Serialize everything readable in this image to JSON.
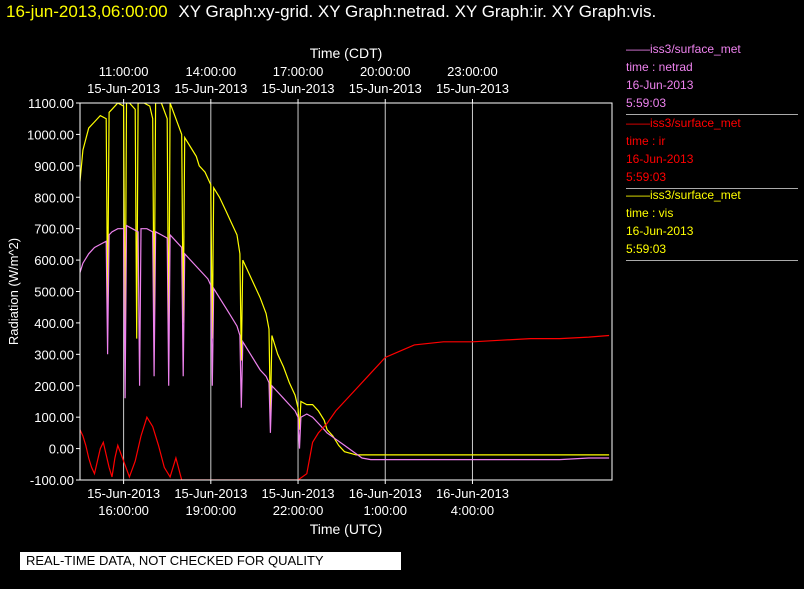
{
  "header": {
    "timestamp": "16-jun-2013,06:00:00",
    "titles": "XY Graph:xy-grid.  XY Graph:netrad.  XY Graph:ir.  XY Graph:vis."
  },
  "legend": [
    {
      "source": "iss3/surface_met",
      "vars": "time : netrad",
      "date": "16-Jun-2013",
      "time": "5:59:03",
      "color": "#ee82ee"
    },
    {
      "source": "iss3/surface_met",
      "vars": "time : ir",
      "date": "16-Jun-2013",
      "time": "5:59:03",
      "color": "#ff0000"
    },
    {
      "source": "iss3/surface_met",
      "vars": "time : vis",
      "date": "16-Jun-2013",
      "time": "5:59:03",
      "color": "#ffff00"
    }
  ],
  "disclaimer": "REAL-TIME DATA, NOT CHECKED FOR QUALITY",
  "chart_data": {
    "type": "line",
    "xlabel_top": "Time (CDT)",
    "xlabel_bottom": "Time (UTC)",
    "ylabel": "Radiation (W/m^2)",
    "ylim": [
      -100,
      1100
    ],
    "xlim_utc_hours": [
      14.5,
      32.8
    ],
    "grid": true,
    "y_ticks": [
      "1100.00",
      "1000.00",
      "900.00",
      "800.00",
      "700.00",
      "600.00",
      "500.00",
      "400.00",
      "300.00",
      "200.00",
      "100.00",
      "0.00",
      "-100.00"
    ],
    "top_ticks": [
      {
        "hour": 16,
        "time": "11:00:00",
        "date": "15-Jun-2013"
      },
      {
        "hour": 19,
        "time": "14:00:00",
        "date": "15-Jun-2013"
      },
      {
        "hour": 22,
        "time": "17:00:00",
        "date": "15-Jun-2013"
      },
      {
        "hour": 25,
        "time": "20:00:00",
        "date": "15-Jun-2013"
      },
      {
        "hour": 28,
        "time": "23:00:00",
        "date": "15-Jun-2013"
      }
    ],
    "bottom_ticks": [
      {
        "hour": 16,
        "date": "15-Jun-2013",
        "time": "16:00:00"
      },
      {
        "hour": 19,
        "date": "15-Jun-2013",
        "time": "19:00:00"
      },
      {
        "hour": 22,
        "date": "15-Jun-2013",
        "time": "22:00:00"
      },
      {
        "hour": 25,
        "date": "16-Jun-2013",
        "time": "1:00:00"
      },
      {
        "hour": 28,
        "date": "16-Jun-2013",
        "time": "4:00:00"
      }
    ],
    "series": [
      {
        "name": "time : vis",
        "color": "#ffff00",
        "x": [
          14.5,
          14.6,
          14.8,
          15.0,
          15.2,
          15.4,
          15.45,
          15.5,
          15.6,
          15.8,
          16.0,
          16.05,
          16.1,
          16.2,
          16.4,
          16.45,
          16.5,
          16.7,
          16.9,
          17.0,
          17.05,
          17.1,
          17.3,
          17.5,
          17.55,
          17.6,
          17.8,
          18.0,
          18.05,
          18.1,
          18.3,
          18.5,
          18.6,
          18.8,
          19.0,
          19.05,
          19.1,
          19.3,
          19.5,
          19.7,
          19.9,
          20.0,
          20.05,
          20.1,
          20.3,
          20.5,
          20.7,
          20.9,
          21.0,
          21.05,
          21.1,
          21.3,
          21.5,
          21.7,
          21.9,
          22.0,
          22.05,
          22.1,
          22.3,
          22.5,
          22.7,
          22.9,
          23.0,
          23.2,
          23.4,
          23.6,
          23.8,
          24.0,
          24.2,
          24.4,
          24.6,
          24.8,
          25.0,
          25.5,
          26.0,
          27.0,
          28.0,
          29.0,
          30.0,
          31.0,
          32.0,
          32.7
        ],
        "y": [
          850,
          950,
          1020,
          1040,
          1060,
          1050,
          450,
          1070,
          1080,
          1100,
          1090,
          300,
          1100,
          1100,
          1080,
          350,
          1100,
          1100,
          1090,
          1050,
          380,
          1100,
          1100,
          1050,
          300,
          1100,
          1050,
          1000,
          400,
          990,
          960,
          930,
          900,
          880,
          840,
          350,
          830,
          800,
          760,
          720,
          680,
          620,
          280,
          600,
          560,
          520,
          480,
          430,
          380,
          100,
          360,
          300,
          260,
          210,
          170,
          130,
          60,
          150,
          140,
          140,
          120,
          90,
          60,
          40,
          10,
          -10,
          -15,
          -20,
          -20,
          -20,
          -20,
          -20,
          -20,
          -20,
          -20,
          -20,
          -20,
          -20,
          -20,
          -20,
          -20,
          -20
        ]
      },
      {
        "name": "time : netrad",
        "color": "#ee82ee",
        "x": [
          14.5,
          14.6,
          14.8,
          15.0,
          15.2,
          15.4,
          15.45,
          15.5,
          15.6,
          15.8,
          16.0,
          16.05,
          16.1,
          16.3,
          16.5,
          16.55,
          16.6,
          16.8,
          17.0,
          17.05,
          17.1,
          17.3,
          17.5,
          17.55,
          17.6,
          17.8,
          18.0,
          18.05,
          18.1,
          18.3,
          18.5,
          18.7,
          18.9,
          19.0,
          19.05,
          19.1,
          19.3,
          19.5,
          19.7,
          19.9,
          20.0,
          20.05,
          20.1,
          20.3,
          20.5,
          20.7,
          20.9,
          21.0,
          21.05,
          21.1,
          21.3,
          21.5,
          21.7,
          21.9,
          22.0,
          22.05,
          22.1,
          22.3,
          22.5,
          22.7,
          22.9,
          23.0,
          23.3,
          23.6,
          23.9,
          24.2,
          24.5,
          24.8,
          25.0,
          25.5,
          26.0,
          27.0,
          28.0,
          29.0,
          30.0,
          31.0,
          32.0,
          32.7
        ],
        "y": [
          560,
          590,
          620,
          640,
          650,
          660,
          300,
          680,
          690,
          700,
          700,
          160,
          710,
          700,
          690,
          200,
          700,
          700,
          690,
          230,
          690,
          680,
          670,
          200,
          680,
          660,
          640,
          230,
          620,
          600,
          580,
          560,
          540,
          520,
          200,
          510,
          480,
          450,
          420,
          390,
          360,
          130,
          340,
          310,
          280,
          250,
          230,
          210,
          50,
          200,
          180,
          160,
          140,
          120,
          100,
          0,
          100,
          110,
          100,
          80,
          60,
          50,
          30,
          10,
          -10,
          -30,
          -35,
          -35,
          -35,
          -35,
          -35,
          -35,
          -35,
          -35,
          -35,
          -35,
          -30,
          -30
        ]
      },
      {
        "name": "time : ir",
        "color": "#ff0000",
        "x": [
          14.5,
          14.6,
          14.7,
          14.8,
          14.9,
          15.0,
          15.1,
          15.2,
          15.3,
          15.4,
          15.5,
          15.6,
          15.7,
          15.8,
          16.0,
          16.2,
          16.4,
          16.6,
          16.8,
          17.0,
          17.2,
          17.4,
          17.6,
          17.8,
          18.0,
          18.2,
          18.4,
          18.6,
          18.8,
          19.0,
          19.4,
          19.8,
          20.2,
          20.6,
          21.0,
          21.4,
          21.8,
          22.0,
          22.3,
          22.5,
          22.7,
          23.0,
          23.3,
          23.6,
          24.0,
          24.5,
          25.0,
          25.5,
          26.0,
          27.0,
          28.0,
          29.0,
          30.0,
          31.0,
          32.0,
          32.7
        ],
        "y": [
          60,
          40,
          10,
          -30,
          -60,
          -80,
          -40,
          0,
          20,
          -20,
          -60,
          -90,
          -30,
          10,
          -40,
          -90,
          -40,
          40,
          100,
          70,
          10,
          -60,
          -90,
          -30,
          -100,
          -100,
          -100,
          -100,
          -100,
          -100,
          -100,
          -100,
          -100,
          -100,
          -100,
          -100,
          -100,
          -100,
          -80,
          20,
          50,
          80,
          120,
          150,
          190,
          240,
          290,
          310,
          330,
          340,
          340,
          345,
          350,
          350,
          355,
          360
        ]
      }
    ]
  }
}
